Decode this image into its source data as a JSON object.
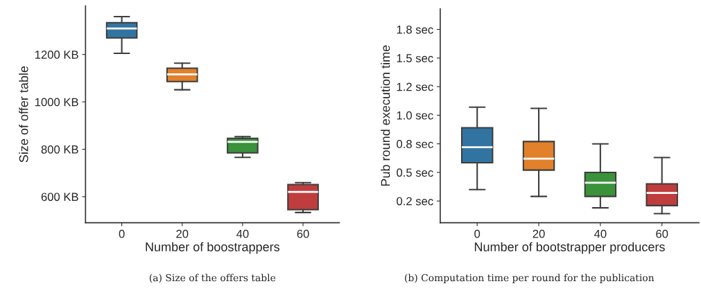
{
  "chart_data": [
    {
      "type": "box",
      "xlabel": "Number of boostrappers",
      "ylabel": "Size of offer table",
      "categories": [
        "0",
        "20",
        "40",
        "60"
      ],
      "colors": [
        "#3274a1",
        "#e1812c",
        "#3a923a",
        "#c03d3e"
      ],
      "boxes": [
        {
          "low": 1205,
          "q1": 1270,
          "median": 1310,
          "q3": 1334,
          "high": 1360
        },
        {
          "low": 1051,
          "q1": 1086,
          "median": 1116,
          "q3": 1142,
          "high": 1163
        },
        {
          "low": 766,
          "q1": 785,
          "median": 831,
          "q3": 846,
          "high": 853
        },
        {
          "low": 533,
          "q1": 545,
          "median": 620,
          "q3": 651,
          "high": 659
        }
      ],
      "ylim": [
        490,
        1405
      ],
      "yticks": [
        {
          "value": 600,
          "label": "600 KB"
        },
        {
          "value": 800,
          "label": "800 KB"
        },
        {
          "value": 1000,
          "label": "1000 KB"
        },
        {
          "value": 1200,
          "label": "1200 KB"
        }
      ],
      "grid": false,
      "annotations": [
        "(a) Size of the offers table"
      ]
    },
    {
      "type": "box",
      "xlabel": "Number of bootstrapper producers",
      "ylabel": "Pub round execution time",
      "categories": [
        "0",
        "20",
        "40",
        "60"
      ],
      "colors": [
        "#3274a1",
        "#e1812c",
        "#3a923a",
        "#c03d3e"
      ],
      "boxes": [
        {
          "low": 0.35,
          "q1": 0.585,
          "median": 0.72,
          "q3": 0.89,
          "high": 1.07
        },
        {
          "low": 0.29,
          "q1": 0.52,
          "median": 0.62,
          "q3": 0.77,
          "high": 1.06
        },
        {
          "low": 0.19,
          "q1": 0.29,
          "median": 0.41,
          "q3": 0.5,
          "high": 0.75
        },
        {
          "low": 0.14,
          "q1": 0.21,
          "median": 0.32,
          "q3": 0.4,
          "high": 0.63
        }
      ],
      "ylim": [
        0.06,
        1.93
      ],
      "yticks": [
        {
          "value": 0.25,
          "label": "0.2 sec"
        },
        {
          "value": 0.5,
          "label": "0.5 sec"
        },
        {
          "value": 0.75,
          "label": "0.8 sec"
        },
        {
          "value": 1.0,
          "label": "1.0 sec"
        },
        {
          "value": 1.25,
          "label": "1.2 sec"
        },
        {
          "value": 1.5,
          "label": "1.5 sec"
        },
        {
          "value": 1.75,
          "label": "1.8 sec"
        }
      ],
      "grid": false,
      "annotations": [
        "(b) Computation time per round for the publication"
      ]
    }
  ]
}
